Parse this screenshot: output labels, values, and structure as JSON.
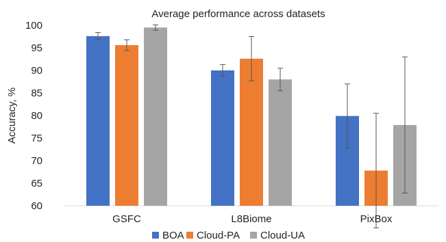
{
  "chart_data": {
    "type": "bar",
    "title": "Average performance across datasets",
    "xlabel": "",
    "ylabel": "Accuracy, %",
    "ylim": [
      60,
      100
    ],
    "yticks": [
      60,
      65,
      70,
      75,
      80,
      85,
      90,
      95,
      100
    ],
    "grid": false,
    "legend_position": "bottom",
    "categories": [
      "GSFC",
      "L8Biome",
      "PixBox"
    ],
    "series": [
      {
        "name": "BOA",
        "color": "#4472C4",
        "values": [
          97.6,
          90.0,
          79.9
        ],
        "errors": [
          0.8,
          1.3,
          7.1
        ]
      },
      {
        "name": "Cloud-PA",
        "color": "#ED7D31",
        "values": [
          95.6,
          92.6,
          67.8
        ],
        "errors": [
          1.2,
          4.9,
          12.7
        ]
      },
      {
        "name": "Cloud-UA",
        "color": "#A5A5A5",
        "values": [
          99.5,
          88.0,
          77.9
        ],
        "errors": [
          0.6,
          2.5,
          15.1
        ]
      }
    ]
  }
}
